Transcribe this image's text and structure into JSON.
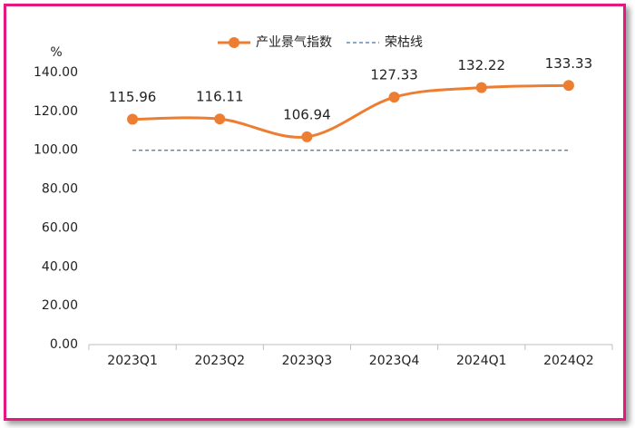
{
  "chart_data": {
    "type": "line",
    "y_label": "%",
    "categories": [
      "2023Q1",
      "2023Q2",
      "2023Q3",
      "2023Q4",
      "2024Q1",
      "2024Q2"
    ],
    "series": [
      {
        "name": "产业景气指数",
        "color": "#ed7d31",
        "values": [
          115.96,
          116.11,
          106.94,
          127.33,
          132.22,
          133.33
        ],
        "smooth": true,
        "markers": true,
        "data_labels": true
      },
      {
        "name": "荣枯线",
        "color": "#4472a8",
        "values": [
          100,
          100,
          100,
          100,
          100,
          100
        ],
        "dashed": true
      }
    ],
    "ylim": [
      0,
      140
    ],
    "yticks": [
      {
        "value": 0,
        "label": "0.00"
      },
      {
        "value": 20,
        "label": "20.00"
      },
      {
        "value": 40,
        "label": "40.00"
      },
      {
        "value": 60,
        "label": "60.00"
      },
      {
        "value": 80,
        "label": "80.00"
      },
      {
        "value": 100,
        "label": "100.00"
      },
      {
        "value": 120,
        "label": "120.00"
      },
      {
        "value": 140,
        "label": "140.00"
      }
    ],
    "legend": "top"
  }
}
